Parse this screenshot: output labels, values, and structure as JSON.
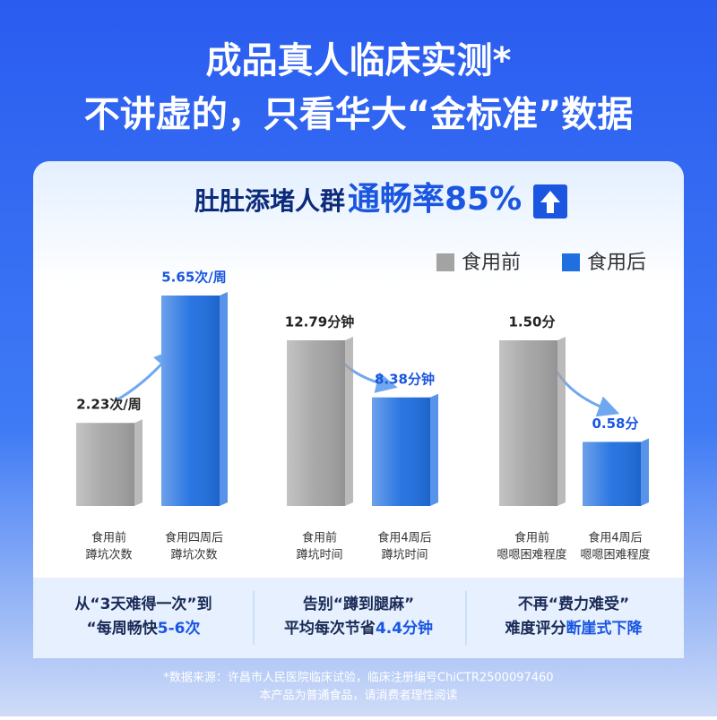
{
  "header": {
    "title": "成品真人临床实测*",
    "subtitle": "不讲虚的，只看华大“金标准”数据"
  },
  "card_title": {
    "text": "肚肚添堵人群",
    "emphasis": "通畅率85%"
  },
  "legend": [
    {
      "name": "食用前",
      "color": "#a3a3a3"
    },
    {
      "name": "食用后",
      "color": "#1f6fe0"
    }
  ],
  "chart_data": [
    {
      "type": "bar",
      "categories": [
        [
          "食用前",
          "蹲坑次数"
        ],
        [
          "食用四周后",
          "蹲坑次数"
        ]
      ],
      "values": [
        2.23,
        5.65
      ],
      "value_labels": [
        "2.23次/周",
        "5.65次/周"
      ],
      "colors": [
        "#a3a3a3",
        "#1f6fe0"
      ],
      "caption": {
        "line1": "从“3天难得一次”到",
        "text": "“每周畅快",
        "emphasis": "5-6次"
      }
    },
    {
      "type": "bar",
      "categories": [
        [
          "食用前",
          "蹲坑时间"
        ],
        [
          "食用4周后",
          "蹲坑时间"
        ]
      ],
      "values": [
        12.79,
        8.38
      ],
      "value_labels": [
        "12.79分钟",
        "8.38分钟"
      ],
      "colors": [
        "#a3a3a3",
        "#1f6fe0"
      ],
      "caption": {
        "line1": "告别“蹲到腿麻”",
        "text": "平均每次节省",
        "emphasis": "4.4分钟"
      }
    },
    {
      "type": "bar",
      "categories": [
        [
          "食用前",
          "嗯嗯困难程度"
        ],
        [
          "食用4周后",
          "嗯嗯困难程度"
        ]
      ],
      "values": [
        1.5,
        0.58
      ],
      "value_labels": [
        "1.50分",
        "0.58分"
      ],
      "colors": [
        "#a3a3a3",
        "#1f6fe0"
      ],
      "caption": {
        "line1": "不再“费力难受”",
        "text": "难度评分",
        "emphasis": "断崖式下降"
      }
    }
  ],
  "footnote": [
    "*数据来源：许昌市人民医院临床试验，临床注册编号ChiCTR2500097460",
    "本产品为普通食品，请消费者理性阅读"
  ]
}
